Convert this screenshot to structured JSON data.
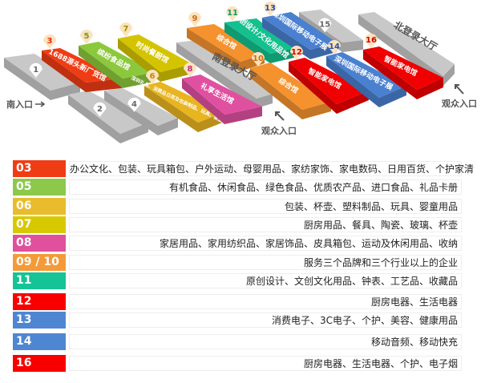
{
  "map": {
    "halls": [
      {
        "id": "1",
        "name": "",
        "color": "#c8c8c8"
      },
      {
        "id": "2",
        "name": "",
        "color": "#c8c8c8"
      },
      {
        "id": "3",
        "name": "1688源头新厂货馆",
        "color": "#f03c14",
        "num_color": "#e03010"
      },
      {
        "id": "4",
        "name": "",
        "color": "#c8c8c8"
      },
      {
        "id": "5",
        "name": "缤纷食品馆",
        "color": "#8cc83c",
        "num_color": "#6aa020"
      },
      {
        "id": "6",
        "name": "深圳礼品、消费品日用及包装制品、玩具、婴童用品",
        "color": "#e8b420",
        "num_color": "#c08a10"
      },
      {
        "id": "7",
        "name": "时尚餐厨馆",
        "color": "#d4c400",
        "num_color": "#a09000"
      },
      {
        "id": "8",
        "name": "礼享生活馆",
        "color": "#e050a0",
        "num_color": "#c0307a"
      },
      {
        "id": "9",
        "name": "综合馆",
        "color": "#f5922e",
        "num_color": "#d06a10"
      },
      {
        "id": "10",
        "name": "综合馆",
        "color": "#f5922e",
        "num_color": "#d06a10"
      },
      {
        "id": "11",
        "name": "原创设计/文化用品馆",
        "color": "#14c08e",
        "num_color": "#0a9a6a"
      },
      {
        "id": "12",
        "name": "智能家电馆",
        "color": "#f00000",
        "num_color": "#d00000"
      },
      {
        "id": "13",
        "name": "深圳国际移动电子展",
        "color": "#4a80d0",
        "num_color": "#2050b0"
      },
      {
        "id": "14",
        "name": "深圳国际移动电子展",
        "color": "#4a80d0",
        "num_color": "#2050b0"
      },
      {
        "id": "15",
        "name": "",
        "color": "#c8c8c8"
      },
      {
        "id": "16",
        "name": "智能家电馆",
        "color": "#f00000",
        "num_color": "#d00000"
      }
    ],
    "south_lobby": "南登录大厅",
    "north_lobby": "北登录大厅",
    "south_entrance": "南入口",
    "visitor_entrance_1": "观众入口",
    "visitor_entrance_2": "观众入口"
  },
  "legend": [
    {
      "code": "03",
      "color": "#f03c14",
      "desc": "办公文化、包装、玩具箱包、户外运动、母婴用品、家纺家饰、家电数码、日用百货、个护家清"
    },
    {
      "code": "05",
      "color": "#8cc84a",
      "desc": "有机食品、休闲食品、绿色食品、优质农产品、进口食品、礼品卡册"
    },
    {
      "code": "06",
      "color": "#e8bc2c",
      "desc": "包装、杯壶、塑料制品、玩具、婴童用品"
    },
    {
      "code": "07",
      "color": "#d8c800",
      "desc": "厨房用品、餐具、陶瓷、玻璃、杯壶"
    },
    {
      "code": "08",
      "color": "#e0509c",
      "desc": "家居用品、家用纺织品、家居饰品、皮具箱包、运动及休闲用品、收纳"
    },
    {
      "code": "09 / 10",
      "color": "#f59a38",
      "desc": "服务三个品牌和三个行业以上的企业"
    },
    {
      "code": "11",
      "color": "#14c496",
      "desc": "原创设计、文创文化用品、钟表、工艺品、收藏品"
    },
    {
      "code": "12",
      "color": "#f80000",
      "desc": "厨房电器、生活电器"
    },
    {
      "code": "13",
      "color": "#4f86d2",
      "desc": "消费电子、3C电子、个护、美容、健康用品"
    },
    {
      "code": "14",
      "color": "#4f86d2",
      "desc": "移动音频、移动快充"
    },
    {
      "code": "16",
      "color": "#f80000",
      "desc": "厨房电器、生活电器、个护、电子烟"
    }
  ]
}
